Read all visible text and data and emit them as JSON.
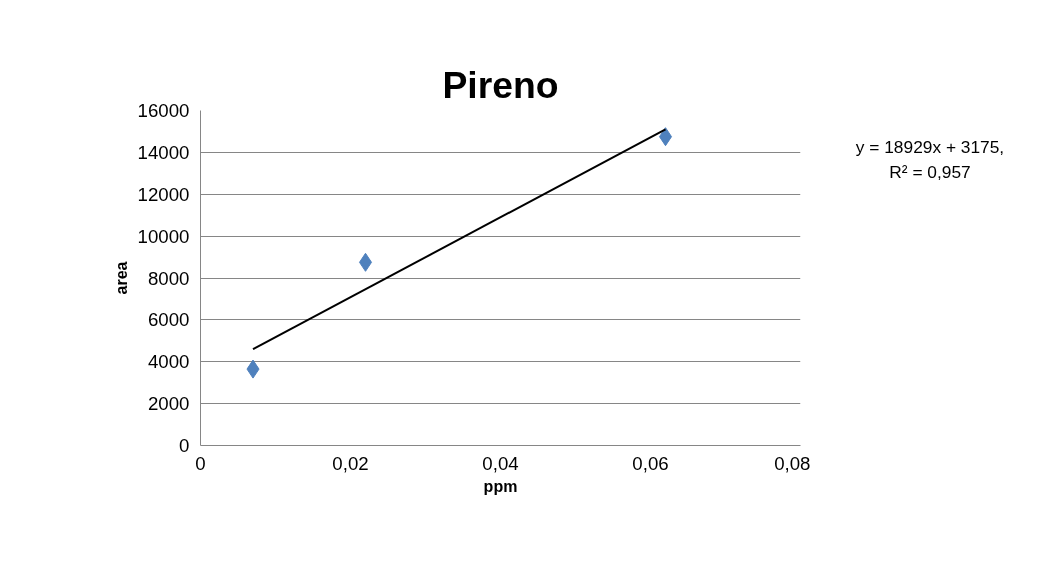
{
  "chart_data": {
    "type": "scatter",
    "title": "Pireno",
    "xlabel": "ppm",
    "ylabel": "area",
    "xlim": [
      0,
      0.08
    ],
    "xticks": [
      {
        "value": 0,
        "label": "0"
      },
      {
        "value": 0.02,
        "label": "0,02"
      },
      {
        "value": 0.04,
        "label": "0,04"
      },
      {
        "value": 0.06,
        "label": "0,06"
      },
      {
        "value": 0.08,
        "label": "0,08"
      }
    ],
    "ylim": [
      0,
      16000
    ],
    "yticks": [
      0,
      2000,
      4000,
      6000,
      8000,
      10000,
      12000,
      14000,
      16000
    ],
    "grid": "y",
    "series": [
      {
        "color": "#4f81bd",
        "marker": "diamond",
        "x": [
          0.007,
          0.022,
          0.062
        ],
        "values": [
          3650,
          8750,
          14750
        ]
      },
      {
        "type": "line",
        "color": "#000000",
        "x": [
          0.007,
          0.062
        ],
        "values": [
          4600,
          15100
        ]
      }
    ],
    "annotations": [
      "y = 18929x + 3175,\nR² = 0,957"
    ]
  }
}
